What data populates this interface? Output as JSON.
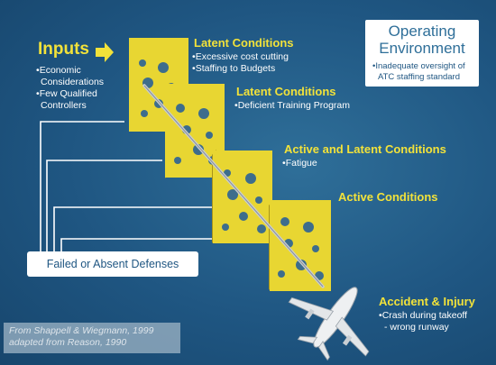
{
  "inputs": {
    "heading": "Inputs",
    "items": [
      "Economic",
      "Considerations",
      "Few Qualified",
      "Controllers"
    ]
  },
  "layers": [
    {
      "heading": "Latent Conditions",
      "items": [
        "Excessive cost cutting",
        "Staffing to Budgets"
      ]
    },
    {
      "heading": "Latent Conditions",
      "items": [
        "Deficient Training Program"
      ]
    },
    {
      "heading": "Active and Latent Conditions",
      "items": [
        "Fatigue"
      ]
    },
    {
      "heading": "Active Conditions",
      "items": []
    }
  ],
  "operating_environment": {
    "title_line1": "Operating",
    "title_line2": "Environment",
    "items": [
      "Inadequate oversight of",
      "ATC staffing standard"
    ]
  },
  "defenses_label": "Failed or Absent Defenses",
  "outcome": {
    "heading": "Accident & Injury",
    "items": [
      "Crash during takeoff",
      " - wrong runway"
    ]
  },
  "citation": {
    "line1": "From Shappell & Wiegmann, 1999",
    "line2": "adapted from Reason, 1990"
  },
  "colors": {
    "background": "#1f5682",
    "cheese": "#e8d632",
    "cheese_side": "#a8941c",
    "heading_yellow": "#f2e23a",
    "box_white": "#ffffff"
  }
}
